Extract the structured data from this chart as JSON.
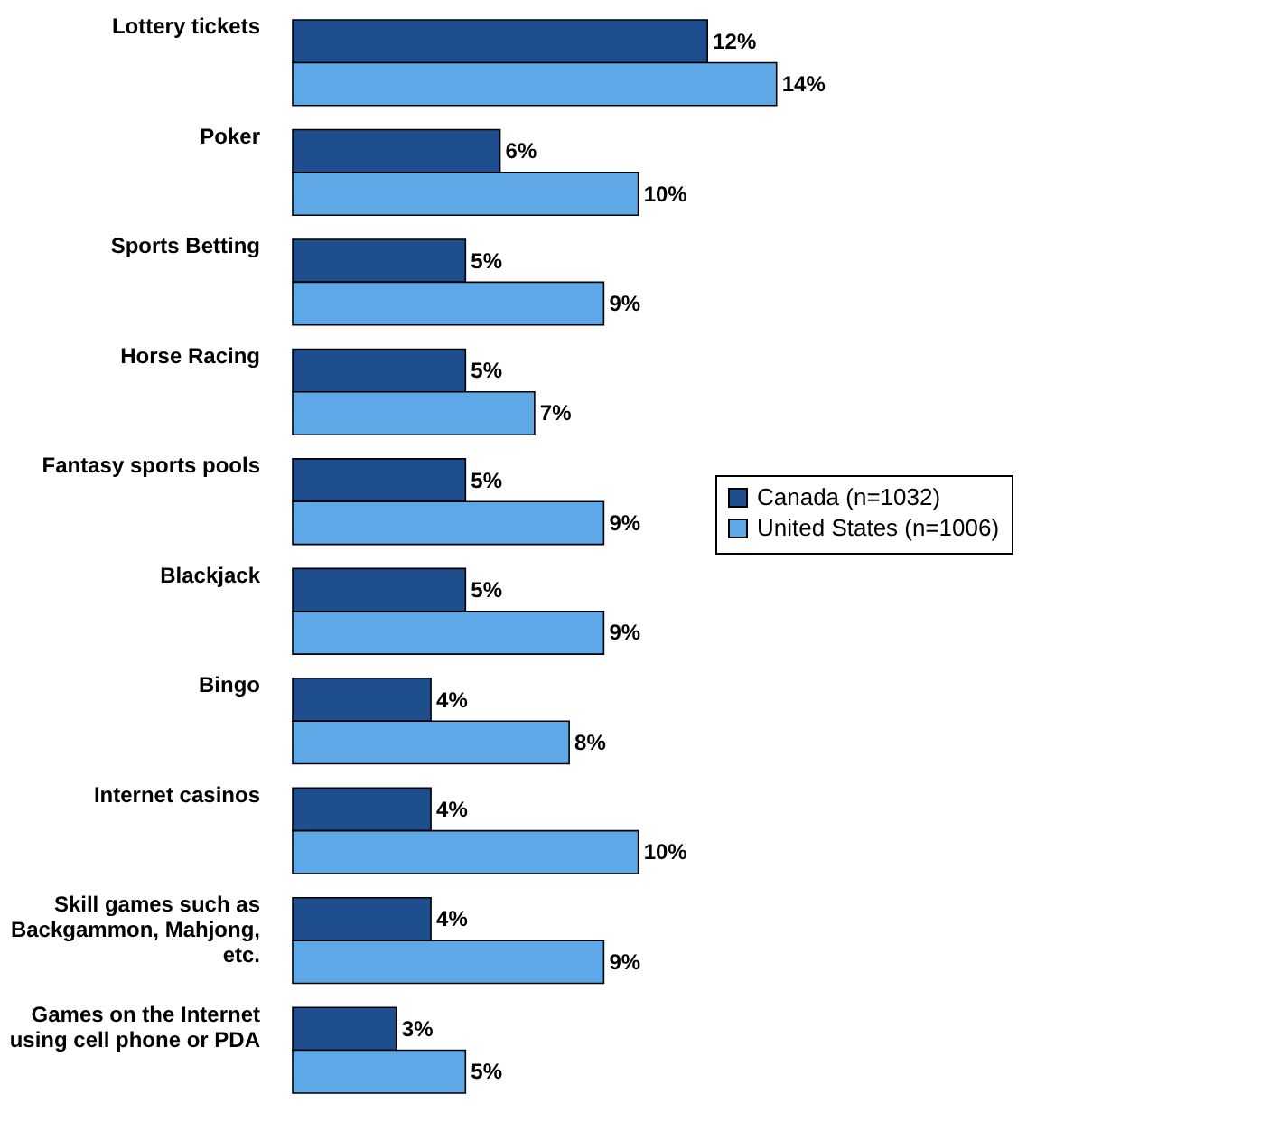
{
  "chart_data": {
    "type": "bar",
    "orientation": "horizontal",
    "categories": [
      "Lottery tickets",
      "Poker",
      "Sports Betting",
      "Horse Racing",
      "Fantasy sports pools",
      "Blackjack",
      "Bingo",
      "Internet casinos",
      "Skill games such as Backgammon, Mahjong, etc.",
      "Games on the Internet using cell phone or PDA"
    ],
    "series": [
      {
        "name": "Canada (n=1032)",
        "color": "#1f4e8e",
        "values": [
          12,
          6,
          5,
          5,
          5,
          5,
          4,
          4,
          4,
          3
        ],
        "value_labels": [
          "12%",
          "6%",
          "5%",
          "5%",
          "5%",
          "5%",
          "4%",
          "4%",
          "4%",
          "3%"
        ]
      },
      {
        "name": "United States (n=1006)",
        "color": "#5ea8e8",
        "values": [
          14,
          10,
          9,
          7,
          9,
          9,
          8,
          10,
          9,
          5
        ],
        "value_labels": [
          "14%",
          "10%",
          "9%",
          "7%",
          "9%",
          "9%",
          "8%",
          "10%",
          "9%",
          "5%"
        ]
      }
    ],
    "legend": "right"
  }
}
